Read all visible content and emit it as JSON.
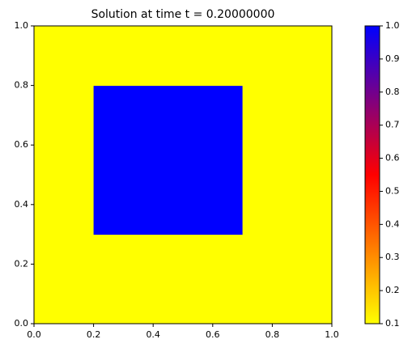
{
  "chart_data": {
    "type": "heatmap",
    "title": "Solution at time t =     0.20000000",
    "x_edges": [
      0,
      0.2,
      0.7,
      1
    ],
    "y_edges": [
      0,
      0.3,
      0.8,
      1
    ],
    "values": [
      [
        0.1,
        0.1,
        0.1
      ],
      [
        0.1,
        1.0,
        0.1
      ],
      [
        0.1,
        0.1,
        0.1
      ]
    ],
    "xlim": [
      0,
      1
    ],
    "ylim": [
      0,
      1
    ],
    "xticks": [
      {
        "value": 0,
        "label": "0.0"
      },
      0.2,
      0.4,
      0.6,
      0.8,
      {
        "value": 1,
        "label": "1.0"
      }
    ],
    "yticks": [
      {
        "value": 0,
        "label": "0.0"
      },
      0.2,
      0.4,
      0.6,
      0.8,
      {
        "value": 1,
        "label": "1.0"
      }
    ],
    "colormap": [
      "#ffff00",
      "#ff0000",
      "#0000ff"
    ],
    "clim": [
      0.1,
      1.0
    ],
    "cticks": [
      0.1,
      0.2,
      0.3,
      0.4,
      0.5,
      0.6,
      0.7,
      0.8,
      0.9,
      {
        "value": 1,
        "label": "1.0"
      }
    ]
  }
}
